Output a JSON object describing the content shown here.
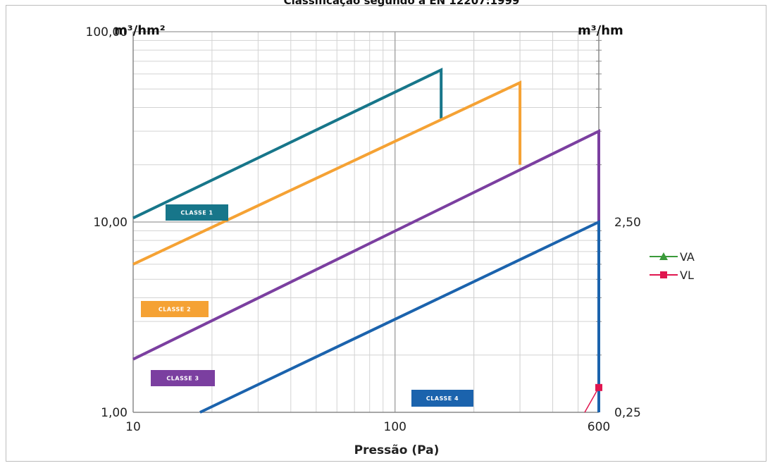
{
  "chart_data": {
    "type": "line",
    "title": "Classificação segundo a EN 12207:1999",
    "xlabel": "Pressão (Pa)",
    "x_scale": "log",
    "y_scale": "log",
    "xlim": [
      10,
      600
    ],
    "ylim": [
      1,
      100
    ],
    "y2lim": [
      0.25,
      25
    ],
    "x_tick_labels": [
      "10",
      "100",
      "600"
    ],
    "x_ticks": [
      10,
      100,
      600
    ],
    "y_tick_labels": [
      "1,00",
      "10,00",
      "100,00"
    ],
    "y_ticks": [
      1,
      10,
      100
    ],
    "y2_tick_labels": [
      "0,25",
      "2,50"
    ],
    "y2_ticks": [
      0.25,
      2.5
    ],
    "y_unit": "m³/hm²",
    "y2_unit": "m³/hm",
    "grid": true,
    "classes": [
      {
        "label": "CLASSE 1",
        "color": "#17768a",
        "points": [
          [
            10,
            10.5
          ],
          [
            150,
            63
          ],
          [
            150,
            35
          ]
        ]
      },
      {
        "label": "CLASSE 2",
        "color": "#f5a234",
        "points": [
          [
            10,
            6
          ],
          [
            300,
            54
          ],
          [
            300,
            20
          ]
        ]
      },
      {
        "label": "CLASSE 3",
        "color": "#7b3fa0",
        "points": [
          [
            10,
            1.9
          ],
          [
            600,
            30
          ],
          [
            600,
            1
          ]
        ]
      },
      {
        "label": "CLASSE 4",
        "color": "#1b63ad",
        "points": [
          [
            18,
            1
          ],
          [
            600,
            10
          ],
          [
            600,
            1
          ]
        ]
      }
    ],
    "series": [
      {
        "name": "VA",
        "color": "#3a9a3a",
        "values": []
      },
      {
        "name": "VL",
        "color": "#e0164f",
        "values": [
          [
            530,
            1
          ],
          [
            600,
            1.35
          ]
        ]
      }
    ]
  }
}
